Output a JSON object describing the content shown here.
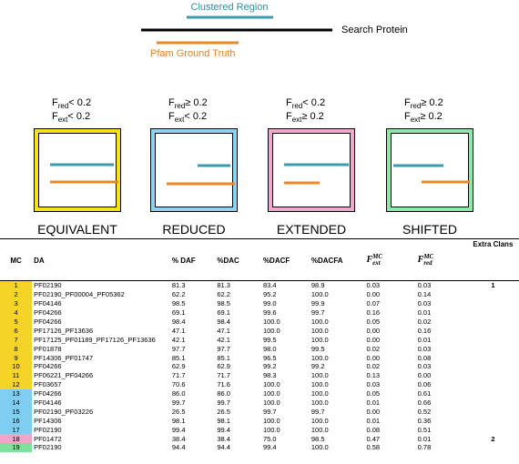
{
  "legend": {
    "clustered": "Clustered Region",
    "search": "Search Protein",
    "pfam": "Pfam Ground Truth"
  },
  "boxes": [
    {
      "name": "EQUIVALENT",
      "color": "#f7e017",
      "conditions": [
        {
          "base": "F",
          "sub": "red",
          "rest": "< 0.2"
        },
        {
          "base": "F",
          "sub": "ext",
          "rest": "< 0.2"
        }
      ]
    },
    {
      "name": "REDUCED",
      "color": "#8fd3f2",
      "conditions": [
        {
          "base": "F",
          "sub": "red",
          "rest": "≥ 0.2"
        },
        {
          "base": "F",
          "sub": "ext",
          "rest": "< 0.2"
        }
      ]
    },
    {
      "name": "EXTENDED",
      "color": "#f4a6cf",
      "conditions": [
        {
          "base": "F",
          "sub": "red",
          "rest": "< 0.2"
        },
        {
          "base": "F",
          "sub": "ext",
          "rest": "≥ 0.2"
        }
      ]
    },
    {
      "name": "SHIFTED",
      "color": "#8ee8a8",
      "conditions": [
        {
          "base": "F",
          "sub": "red",
          "rest": "≥ 0.2"
        },
        {
          "base": "F",
          "sub": "ext",
          "rest": "≥ 0.2"
        }
      ]
    }
  ],
  "table": {
    "headers": [
      "MC",
      "DA",
      "% DAF",
      "%DAC",
      "%DACF",
      "%DACFA",
      {
        "base": "F",
        "sup": "MC",
        "sub": "ext"
      },
      {
        "base": "F",
        "sup": "MC",
        "sub": "red"
      },
      "Extra Clans"
    ],
    "groups": [
      {
        "color": "#f5d327",
        "rows": [
          {
            "cells": [
              "1",
              "PF02190",
              "81.3",
              "81.3",
              "83.4",
              "98.9",
              "0.03",
              "0.03"
            ],
            "extra": "1"
          },
          {
            "cells": [
              "2",
              "PF02190_PF00004_PF05362",
              "62.2",
              "62.2",
              "95.2",
              "100.0",
              "0.00",
              "0.14"
            ]
          },
          {
            "cells": [
              "3",
              "PF04146",
              "98.5",
              "98.5",
              "99.0",
              "99.9",
              "0.07",
              "0.03"
            ]
          },
          {
            "cells": [
              "4",
              "PF04266",
              "69.1",
              "69.1",
              "99.6",
              "99.7",
              "0.16",
              "0.01"
            ]
          },
          {
            "cells": [
              "5",
              "PF04266",
              "98.4",
              "98.4",
              "100.0",
              "100.0",
              "0.05",
              "0.02"
            ]
          },
          {
            "cells": [
              "6",
              "PF17126_PF13636",
              "47.1",
              "47.1",
              "100.0",
              "100.0",
              "0.00",
              "0.16"
            ]
          },
          {
            "cells": [
              "7",
              "PF17125_PF01189_PF17126_PF13636",
              "42.1",
              "42.1",
              "99.5",
              "100.0",
              "0.00",
              "0.01"
            ]
          },
          {
            "cells": [
              "8",
              "PF01878",
              "97.7",
              "97.7",
              "98.0",
              "99.5",
              "0.02",
              "0.03"
            ]
          },
          {
            "cells": [
              "9",
              "PF14306_PF01747",
              "85.1",
              "85.1",
              "96.5",
              "100.0",
              "0.00",
              "0.08"
            ]
          },
          {
            "cells": [
              "10",
              "PF04266",
              "62.9",
              "62.9",
              "99.2",
              "99.2",
              "0.02",
              "0.03"
            ]
          },
          {
            "cells": [
              "11",
              "PF06221_PF04266",
              "71.7",
              "71.7",
              "98.3",
              "100.0",
              "0.13",
              "0.00"
            ]
          },
          {
            "cells": [
              "12",
              "PF03657",
              "70.6",
              "71.6",
              "100.0",
              "100.0",
              "0.03",
              "0.06"
            ]
          }
        ]
      },
      {
        "color": "#7fcdf0",
        "rows": [
          {
            "cells": [
              "13",
              "PF04266",
              "86.0",
              "86.0",
              "100.0",
              "100.0",
              "0.05",
              "0.61"
            ]
          },
          {
            "cells": [
              "14",
              "PF04146",
              "99.7",
              "99.7",
              "100.0",
              "100.0",
              "0.01",
              "0.66"
            ]
          },
          {
            "cells": [
              "15",
              "PF02190_PF03226",
              "26.5",
              "26.5",
              "99.7",
              "99.7",
              "0.00",
              "0.52"
            ]
          },
          {
            "cells": [
              "16",
              "PF14306",
              "98.1",
              "98.1",
              "100.0",
              "100.0",
              "0.01",
              "0.36"
            ]
          },
          {
            "cells": [
              "17",
              "PF02190",
              "99.4",
              "99.4",
              "100.0",
              "100.0",
              "0.08",
              "0.51"
            ]
          }
        ]
      },
      {
        "color": "#f4a3cc",
        "rows": [
          {
            "cells": [
              "18",
              "PF01472",
              "38.4",
              "38.4",
              "75.0",
              "98.5",
              "0.47",
              "0.01"
            ],
            "extra": "2"
          }
        ]
      },
      {
        "color": "#7ee09a",
        "rows": [
          {
            "cells": [
              "19",
              "PF02190",
              "94.4",
              "94.4",
              "99.4",
              "100.0",
              "0.58",
              "0.78"
            ]
          }
        ]
      }
    ]
  }
}
